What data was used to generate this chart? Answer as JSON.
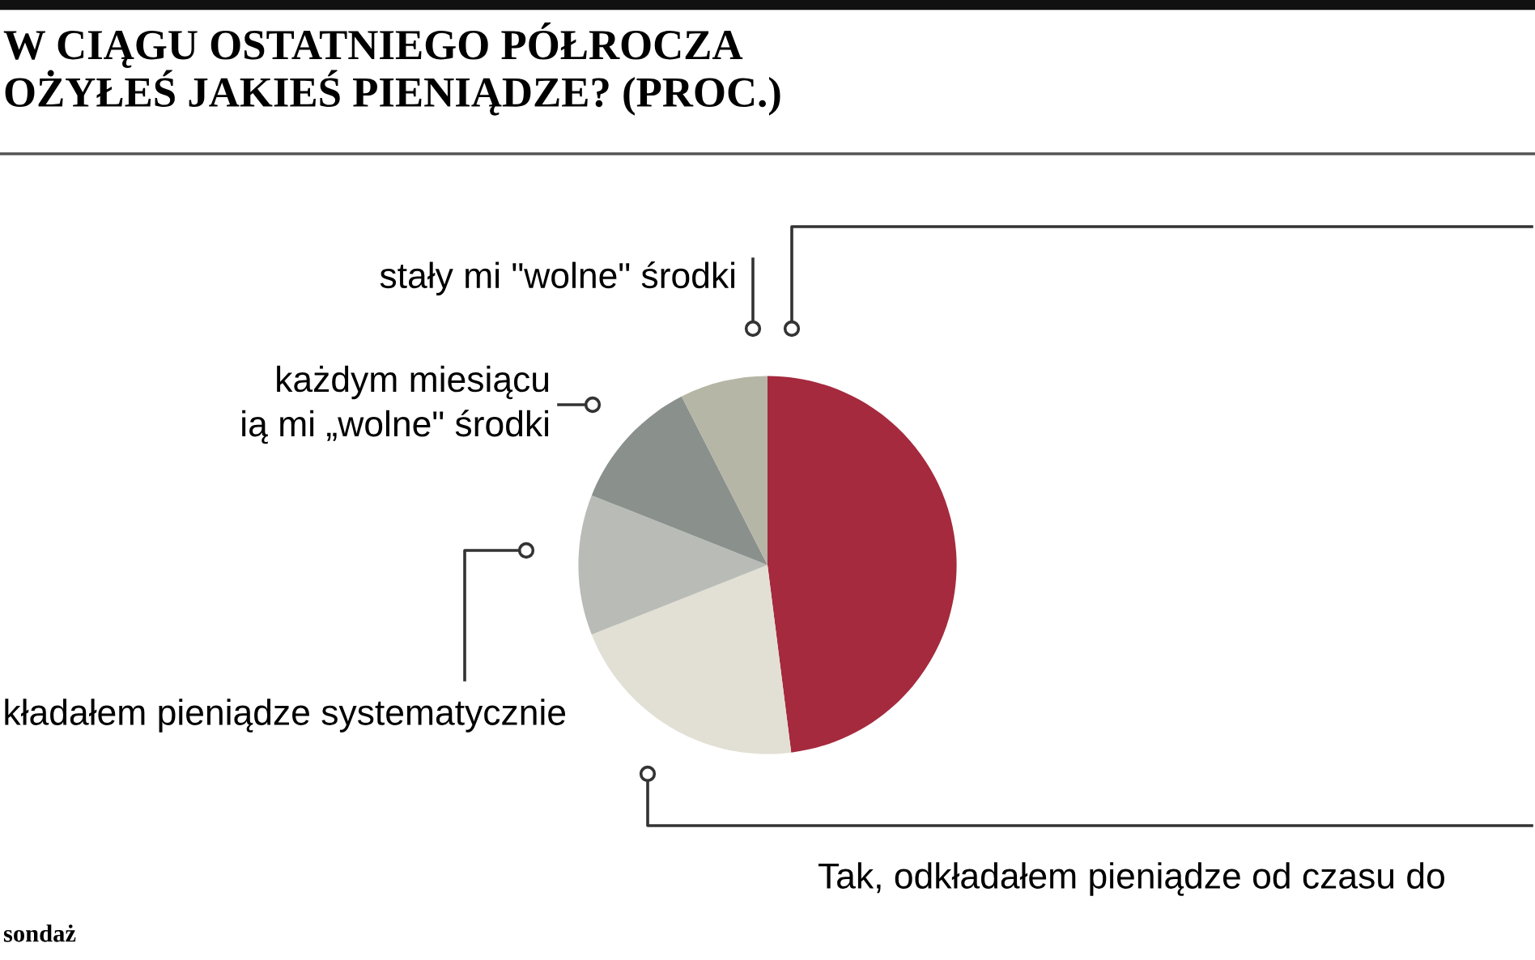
{
  "chart_data": {
    "type": "pie",
    "title": "W CIĄGU OSTATNIEGO PÓŁROCZA\nOŻYŁEŚ JAKIEŚ PIENIĄDZE? (PROC.)",
    "categories": [
      null,
      "Tak, odkładałem pieniądze od czasu do",
      "kładałem pieniądze systematycznie",
      "każdym miesiącu\nią mi „wolne\" środki",
      "stały mi \"wolne\" środki"
    ],
    "values": [
      48,
      21,
      12,
      11.5,
      7.5
    ],
    "colors": [
      "#a52a3e",
      "#e2e0d4",
      "#b9bcb6",
      "#8a918d",
      "#b6b6a6"
    ],
    "annotations": [
      "sondaż"
    ]
  }
}
